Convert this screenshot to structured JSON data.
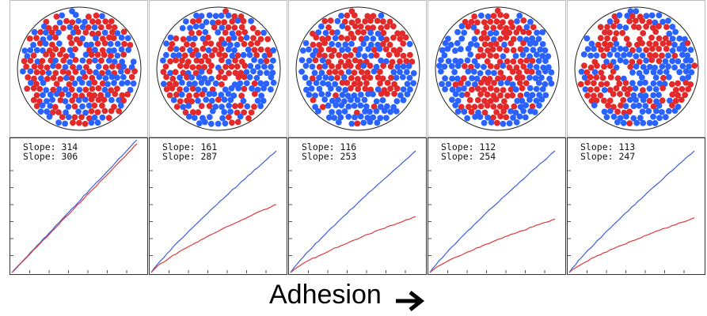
{
  "caption": "Adhesion",
  "colors": {
    "blue": "#2962ff",
    "red": "#e32a2a",
    "blue_line": "#3a5fd8",
    "red_line": "#dd3b3b"
  },
  "panels": [
    {
      "blue_slope": "Slope: 314",
      "red_slope": "Slope: 306",
      "clustering": 0.05,
      "red_end_fraction": 0.97
    },
    {
      "blue_slope": "Slope: 161",
      "red_slope": "Slope: 287",
      "clustering": 0.55,
      "red_end_fraction": 0.56
    },
    {
      "blue_slope": "Slope: 116",
      "red_slope": "Slope: 253",
      "clustering": 0.75,
      "red_end_fraction": 0.46
    },
    {
      "blue_slope": "Slope: 112",
      "red_slope": "Slope: 254",
      "clustering": 0.8,
      "red_end_fraction": 0.44
    },
    {
      "blue_slope": "Slope: 113",
      "red_slope": "Slope: 247",
      "clustering": 0.85,
      "red_end_fraction": 0.45
    }
  ]
}
